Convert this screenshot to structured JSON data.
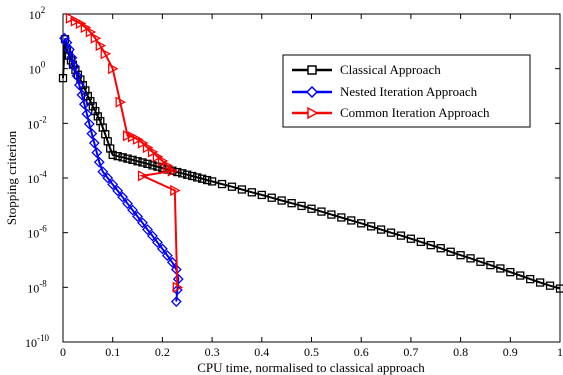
{
  "chart_data": {
    "type": "line",
    "title": "",
    "xlabel": "CPU time, normalised to classical approach",
    "ylabel": "Stopping criterion",
    "xlim": [
      0,
      1
    ],
    "ylim": [
      1e-10,
      100
    ],
    "yscale": "log",
    "grid": false,
    "legend_position": "top-right",
    "x_ticks": [
      "0",
      "0.1",
      "0.2",
      "0.3",
      "0.4",
      "0.5",
      "0.6",
      "0.7",
      "0.8",
      "0.9",
      "1"
    ],
    "y_ticks": [
      {
        "base": "10",
        "exp": "2"
      },
      {
        "base": "10",
        "exp": "0"
      },
      {
        "base": "10",
        "exp": "-2"
      },
      {
        "base": "10",
        "exp": "-4"
      },
      {
        "base": "10",
        "exp": "-6"
      },
      {
        "base": "10",
        "exp": "-8"
      },
      {
        "base": "10",
        "exp": "-10"
      }
    ],
    "series": [
      {
        "name": "Classical Approach",
        "color": "#000000",
        "marker": "square",
        "points": [
          [
            0.0,
            0.45
          ],
          [
            0.004,
            12.0
          ],
          [
            0.008,
            5.0
          ],
          [
            0.012,
            3.0
          ],
          [
            0.016,
            2.0
          ],
          [
            0.02,
            1.4
          ],
          [
            0.025,
            0.9
          ],
          [
            0.03,
            0.6
          ],
          [
            0.035,
            0.4
          ],
          [
            0.04,
            0.25
          ],
          [
            0.045,
            0.16
          ],
          [
            0.05,
            0.1
          ],
          [
            0.055,
            0.065
          ],
          [
            0.06,
            0.042
          ],
          [
            0.065,
            0.028
          ],
          [
            0.07,
            0.018
          ],
          [
            0.075,
            0.012
          ],
          [
            0.08,
            0.007
          ],
          [
            0.085,
            0.004
          ],
          [
            0.09,
            0.0022
          ],
          [
            0.095,
            0.0012
          ],
          [
            0.1,
            0.0007
          ],
          [
            0.11,
            0.00063
          ],
          [
            0.12,
            0.00057
          ],
          [
            0.13,
            0.00051
          ],
          [
            0.14,
            0.00046
          ],
          [
            0.15,
            0.00041
          ],
          [
            0.16,
            0.00037
          ],
          [
            0.17,
            0.00033
          ],
          [
            0.18,
            0.00029
          ],
          [
            0.19,
            0.00026
          ],
          [
            0.2,
            0.00023
          ],
          [
            0.21,
            0.000205
          ],
          [
            0.22,
            0.000185
          ],
          [
            0.23,
            0.000165
          ],
          [
            0.24,
            0.000148
          ],
          [
            0.25,
            0.000132
          ],
          [
            0.26,
            0.000118
          ],
          [
            0.27,
            0.000105
          ],
          [
            0.28,
            9.4e-05
          ],
          [
            0.29,
            8.4e-05
          ],
          [
            0.3,
            7.5e-05
          ],
          [
            0.32,
            6e-05
          ],
          [
            0.34,
            4.8e-05
          ],
          [
            0.36,
            3.8e-05
          ],
          [
            0.38,
            3e-05
          ],
          [
            0.4,
            2.4e-05
          ],
          [
            0.42,
            1.9e-05
          ],
          [
            0.44,
            1.5e-05
          ],
          [
            0.46,
            1.2e-05
          ],
          [
            0.48,
            9.5e-06
          ],
          [
            0.5,
            7.5e-06
          ],
          [
            0.52,
            5.9e-06
          ],
          [
            0.54,
            4.6e-06
          ],
          [
            0.56,
            3.6e-06
          ],
          [
            0.58,
            2.8e-06
          ],
          [
            0.6,
            2.2e-06
          ],
          [
            0.62,
            1.7e-06
          ],
          [
            0.64,
            1.3e-06
          ],
          [
            0.66,
            1e-06
          ],
          [
            0.68,
            7.8e-07
          ],
          [
            0.7,
            6e-07
          ],
          [
            0.72,
            4.6e-07
          ],
          [
            0.74,
            3.5e-07
          ],
          [
            0.76,
            2.7e-07
          ],
          [
            0.78,
            2e-07
          ],
          [
            0.8,
            1.5e-07
          ],
          [
            0.82,
            1.15e-07
          ],
          [
            0.84,
            8.6e-08
          ],
          [
            0.86,
            6.5e-08
          ],
          [
            0.88,
            4.9e-08
          ],
          [
            0.9,
            3.6e-08
          ],
          [
            0.92,
            2.7e-08
          ],
          [
            0.94,
            2e-08
          ],
          [
            0.96,
            1.5e-08
          ],
          [
            0.98,
            1.15e-08
          ],
          [
            1.0,
            9e-09
          ]
        ]
      },
      {
        "name": "Nested Iteration Approach",
        "color": "#0000ff",
        "marker": "diamond",
        "points": [
          [
            0.003,
            13.0
          ],
          [
            0.008,
            9.0
          ],
          [
            0.013,
            5.0
          ],
          [
            0.018,
            2.5
          ],
          [
            0.023,
            1.2
          ],
          [
            0.028,
            0.55
          ],
          [
            0.033,
            0.25
          ],
          [
            0.038,
            0.11
          ],
          [
            0.043,
            0.05
          ],
          [
            0.048,
            0.022
          ],
          [
            0.053,
            0.0095
          ],
          [
            0.058,
            0.0042
          ],
          [
            0.063,
            0.0019
          ],
          [
            0.068,
            0.00085
          ],
          [
            0.073,
            0.00038
          ],
          [
            0.08,
            0.00017
          ],
          [
            0.09,
            0.0001
          ],
          [
            0.1,
            5.8e-05
          ],
          [
            0.11,
            3.4e-05
          ],
          [
            0.12,
            2e-05
          ],
          [
            0.13,
            1.15e-05
          ],
          [
            0.14,
            6.7e-06
          ],
          [
            0.15,
            3.9e-06
          ],
          [
            0.16,
            2.3e-06
          ],
          [
            0.17,
            1.3e-06
          ],
          [
            0.18,
            7.6e-07
          ],
          [
            0.19,
            4.4e-07
          ],
          [
            0.2,
            2.55e-07
          ],
          [
            0.21,
            1.45e-07
          ],
          [
            0.22,
            8.2e-08
          ],
          [
            0.228,
            4.5e-08
          ],
          [
            0.232,
            2e-08
          ],
          [
            0.23,
            8e-09
          ],
          [
            0.228,
            3e-09
          ]
        ]
      },
      {
        "name": "Common Iteration Approach",
        "color": "#ff0000",
        "marker": "triangle-right",
        "points": [
          [
            0.015,
            70.0
          ],
          [
            0.025,
            55.0
          ],
          [
            0.035,
            45.0
          ],
          [
            0.045,
            32.0
          ],
          [
            0.055,
            22.0
          ],
          [
            0.065,
            13.0
          ],
          [
            0.075,
            7.0
          ],
          [
            0.085,
            3.5
          ],
          [
            0.1,
            1.0
          ],
          [
            0.115,
            0.06
          ],
          [
            0.13,
            0.0035
          ],
          [
            0.14,
            0.0032
          ],
          [
            0.15,
            0.0026
          ],
          [
            0.16,
            0.0019
          ],
          [
            0.17,
            0.0013
          ],
          [
            0.18,
            0.0009
          ],
          [
            0.19,
            0.0006
          ],
          [
            0.2,
            0.00042
          ],
          [
            0.21,
            0.00028
          ],
          [
            0.22,
            0.00018
          ],
          [
            0.16,
            0.00012
          ],
          [
            0.225,
            3.5e-05
          ],
          [
            0.23,
            1e-08
          ]
        ]
      }
    ]
  }
}
